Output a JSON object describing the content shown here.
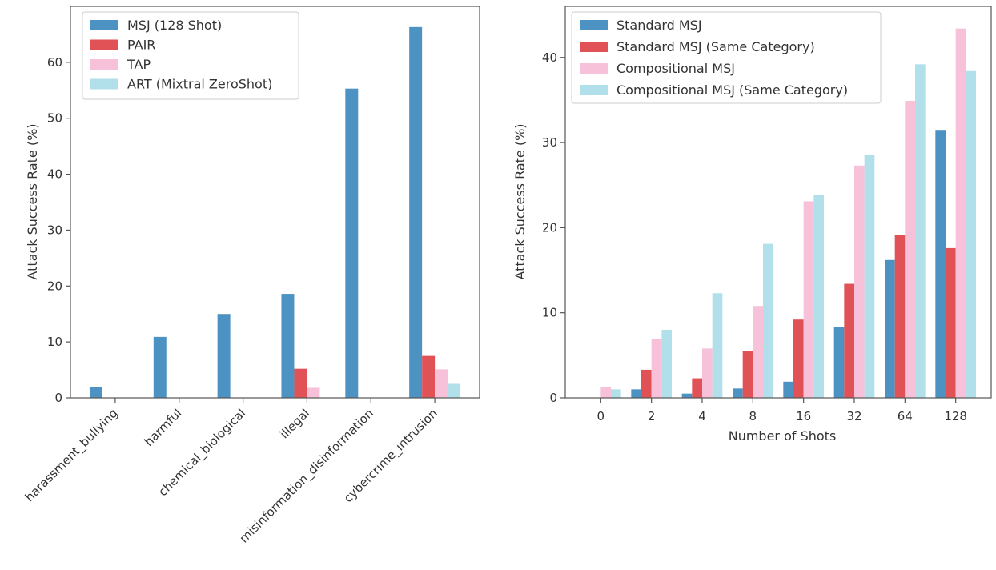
{
  "chart_data": [
    {
      "type": "bar",
      "categories": [
        "harassment_bullying",
        "harmful",
        "chemical_biological",
        "illegal",
        "misinformation_disinformation",
        "cybercrime_intrusion"
      ],
      "series": [
        {
          "name": "MSJ (128 Shot)",
          "color": "#4c92c3",
          "values": [
            1.9,
            10.9,
            15.0,
            18.6,
            55.3,
            66.3
          ]
        },
        {
          "name": "PAIR",
          "color": "#e05256",
          "values": [
            0,
            0,
            0,
            5.2,
            0,
            7.5
          ]
        },
        {
          "name": "TAP",
          "color": "#f7c2d9",
          "values": [
            0,
            0,
            0,
            1.8,
            0,
            5.1
          ]
        },
        {
          "name": "ART (Mixtral ZeroShot)",
          "color": "#b2e0ea",
          "values": [
            0,
            0,
            0,
            0,
            0,
            2.5
          ]
        }
      ],
      "ylabel": "Attack Success Rate (%)",
      "xlabel": "",
      "ylim": [
        0,
        70
      ],
      "yticks": [
        0,
        10,
        20,
        30,
        40,
        50,
        60
      ],
      "grid": false,
      "legend_position": "top-left"
    },
    {
      "type": "bar",
      "categories": [
        "0",
        "2",
        "4",
        "8",
        "16",
        "32",
        "64",
        "128"
      ],
      "series": [
        {
          "name": "Standard MSJ",
          "color": "#4c92c3",
          "values": [
            0,
            1.0,
            0.5,
            1.1,
            1.9,
            8.3,
            16.2,
            31.4
          ]
        },
        {
          "name": "Standard MSJ (Same Category)",
          "color": "#e05256",
          "values": [
            0,
            3.3,
            2.3,
            5.5,
            9.2,
            13.4,
            19.1,
            17.6
          ]
        },
        {
          "name": "Compositional MSJ",
          "color": "#f7c2d9",
          "values": [
            1.3,
            6.9,
            5.8,
            10.8,
            23.1,
            27.3,
            34.9,
            43.4
          ]
        },
        {
          "name": "Compositional MSJ (Same Category)",
          "color": "#b2e0ea",
          "values": [
            1.0,
            8.0,
            12.3,
            18.1,
            23.8,
            28.6,
            39.2,
            38.4
          ]
        }
      ],
      "ylabel": "Attack Success Rate (%)",
      "xlabel": "Number of Shots",
      "ylim": [
        0,
        46
      ],
      "yticks": [
        0,
        10,
        20,
        30,
        40
      ],
      "grid": false,
      "legend_position": "top-left"
    }
  ]
}
